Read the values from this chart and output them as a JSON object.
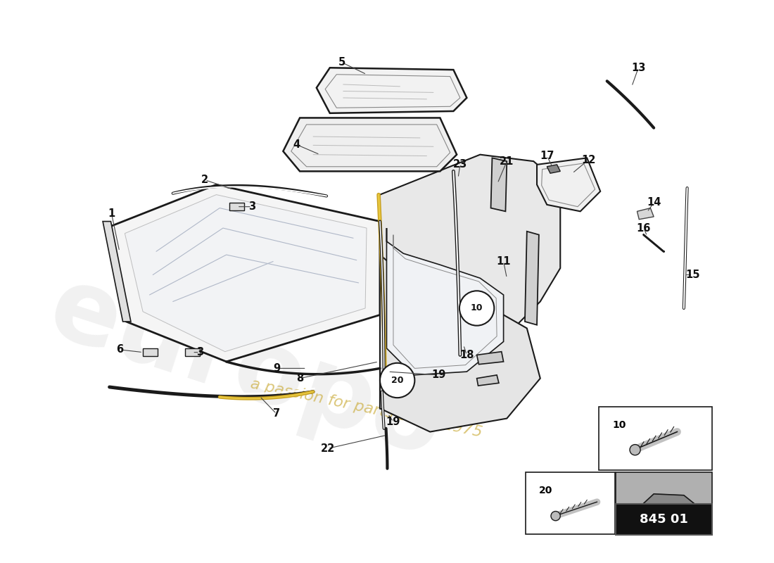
{
  "bg_color": "#ffffff",
  "line_color": "#1a1a1a",
  "part_number": "845 01",
  "watermark_color_1": "#d0d0d0",
  "watermark_color_2": "#c8a830",
  "label_fontsize": 10.5
}
